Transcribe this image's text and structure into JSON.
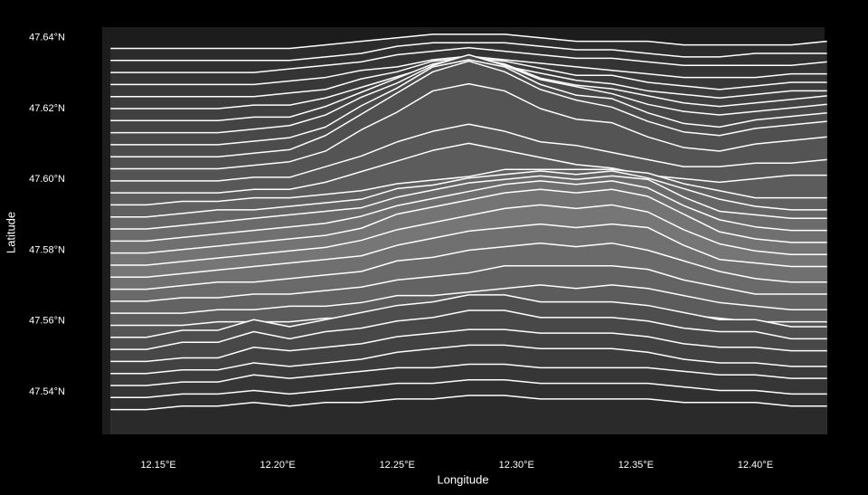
{
  "chart_data": {
    "type": "ridgeline",
    "xlabel": "Longitude",
    "ylabel": "Latitude",
    "color": "#ffffff",
    "xlim": [
      12.1265,
      12.429
    ],
    "ylim": [
      47.528,
      47.643
    ],
    "xticks": [
      {
        "value": 12.15,
        "label": "12.15°E"
      },
      {
        "value": 12.2,
        "label": "12.20°E"
      },
      {
        "value": 12.25,
        "label": "12.25°E"
      },
      {
        "value": 12.3,
        "label": "12.30°E"
      },
      {
        "value": 12.35,
        "label": "12.35°E"
      },
      {
        "value": 12.4,
        "label": "12.40°E"
      }
    ],
    "yticks": [
      {
        "value": 47.54,
        "label": "47.54°N"
      },
      {
        "value": 47.56,
        "label": "47.56°N"
      },
      {
        "value": 47.58,
        "label": "47.58°N"
      },
      {
        "value": 47.6,
        "label": "47.60°N"
      },
      {
        "value": 47.62,
        "label": "47.62°N"
      },
      {
        "value": 47.64,
        "label": "47.64°N"
      }
    ],
    "x": [
      12.13,
      12.145,
      12.16,
      12.175,
      12.19,
      12.205,
      12.22,
      12.235,
      12.25,
      12.265,
      12.28,
      12.295,
      12.31,
      12.325,
      12.34,
      12.355,
      12.37,
      12.385,
      12.4,
      12.415,
      12.43
    ],
    "series": [
      {
        "fill": "#2a2a2a",
        "values": [
          47.535,
          47.535,
          47.536,
          47.536,
          47.537,
          47.536,
          47.537,
          47.537,
          47.538,
          47.538,
          47.539,
          47.539,
          47.538,
          47.538,
          47.538,
          47.538,
          47.537,
          47.537,
          47.537,
          47.536,
          47.536
        ]
      },
      {
        "fill": "#303030",
        "values": [
          47.5384,
          47.5384,
          47.5394,
          47.5394,
          47.5404,
          47.5394,
          47.5404,
          47.5414,
          47.5424,
          47.5424,
          47.5434,
          47.5434,
          47.5424,
          47.5424,
          47.5424,
          47.5424,
          47.5414,
          47.5404,
          47.5404,
          47.5394,
          47.5394
        ]
      },
      {
        "fill": "#363636",
        "values": [
          47.5418,
          47.5418,
          47.5428,
          47.5428,
          47.5448,
          47.5438,
          47.5448,
          47.5458,
          47.5468,
          47.5468,
          47.5478,
          47.5478,
          47.5468,
          47.5468,
          47.5468,
          47.5468,
          47.5458,
          47.5448,
          47.5448,
          47.5438,
          47.5438
        ]
      },
      {
        "fill": "#3c3c3c",
        "values": [
          47.5452,
          47.5452,
          47.5462,
          47.5462,
          47.5482,
          47.5472,
          47.5482,
          47.5492,
          47.5512,
          47.5522,
          47.5532,
          47.5532,
          47.5522,
          47.5522,
          47.5522,
          47.5512,
          47.5492,
          47.5482,
          47.5482,
          47.5472,
          47.5472
        ]
      },
      {
        "fill": "#424242",
        "values": [
          47.5486,
          47.5486,
          47.5496,
          47.5496,
          47.5526,
          47.5516,
          47.5526,
          47.5536,
          47.5556,
          47.5566,
          47.5576,
          47.5576,
          47.5566,
          47.5566,
          47.5566,
          47.5556,
          47.5536,
          47.5526,
          47.5526,
          47.5516,
          47.5516
        ]
      },
      {
        "fill": "#484848",
        "values": [
          47.552,
          47.552,
          47.554,
          47.554,
          47.557,
          47.555,
          47.557,
          47.558,
          47.56,
          47.561,
          47.563,
          47.563,
          47.561,
          47.561,
          47.561,
          47.56,
          47.558,
          47.557,
          47.557,
          47.555,
          47.555
        ]
      },
      {
        "fill": "#4e4e4e",
        "values": [
          47.5554,
          47.5554,
          47.5574,
          47.5574,
          47.5604,
          47.5584,
          47.5604,
          47.5624,
          47.5644,
          47.5654,
          47.5674,
          47.5674,
          47.5654,
          47.5654,
          47.5654,
          47.5644,
          47.5624,
          47.5604,
          47.5604,
          47.5584,
          47.5584
        ]
      },
      {
        "fill": "#555555",
        "values": [
          47.5588,
          47.5588,
          47.5588,
          47.5598,
          47.5598,
          47.5598,
          47.5608,
          47.5608,
          47.5618,
          47.5628,
          47.5628,
          47.5638,
          47.5638,
          47.5638,
          47.5638,
          47.5638,
          47.5618,
          47.5608,
          47.5598,
          47.5598,
          47.5598
        ]
      },
      {
        "fill": "#5c5c5c",
        "values": [
          47.5622,
          47.5622,
          47.5622,
          47.5632,
          47.5632,
          47.5642,
          47.5642,
          47.5652,
          47.5672,
          47.5672,
          47.5682,
          47.5692,
          47.5702,
          47.5692,
          47.5702,
          47.5692,
          47.5672,
          47.5652,
          47.5642,
          47.5632,
          47.5632
        ]
      },
      {
        "fill": "#636363",
        "values": [
          47.5656,
          47.5656,
          47.5666,
          47.5666,
          47.5676,
          47.5676,
          47.5686,
          47.5696,
          47.5716,
          47.5726,
          47.5736,
          47.5756,
          47.5756,
          47.5756,
          47.5756,
          47.5746,
          47.5716,
          47.5696,
          47.5676,
          47.5676,
          47.5676
        ]
      },
      {
        "fill": "#6a6a6a",
        "values": [
          47.569,
          47.569,
          47.57,
          47.571,
          47.571,
          47.572,
          47.573,
          47.574,
          47.577,
          47.578,
          47.58,
          47.581,
          47.582,
          47.581,
          47.582,
          47.58,
          47.577,
          47.574,
          47.572,
          47.571,
          47.571
        ]
      },
      {
        "fill": "#707070",
        "values": [
          47.5724,
          47.5724,
          47.5734,
          47.5744,
          47.5754,
          47.5764,
          47.5774,
          47.5784,
          47.5814,
          47.5834,
          47.5854,
          47.5864,
          47.5874,
          47.5864,
          47.5874,
          47.5864,
          47.5814,
          47.5774,
          47.5764,
          47.5754,
          47.5754
        ]
      },
      {
        "fill": "#767676",
        "values": [
          47.5758,
          47.5758,
          47.5768,
          47.5778,
          47.5788,
          47.5798,
          47.5808,
          47.5828,
          47.5858,
          47.5878,
          47.5898,
          47.5918,
          47.5928,
          47.5918,
          47.5928,
          47.5908,
          47.5858,
          47.5818,
          47.5798,
          47.5788,
          47.5788
        ]
      },
      {
        "fill": "#747474",
        "values": [
          47.5792,
          47.5792,
          47.5802,
          47.5812,
          47.5822,
          47.5832,
          47.5842,
          47.5862,
          47.5902,
          47.5922,
          47.5942,
          47.5962,
          47.5972,
          47.5962,
          47.5972,
          47.5952,
          47.5902,
          47.5852,
          47.5832,
          47.5822,
          47.5822
        ]
      },
      {
        "fill": "#707070",
        "values": [
          47.5826,
          47.5826,
          47.5836,
          47.5846,
          47.5856,
          47.5866,
          47.5876,
          47.5896,
          47.5926,
          47.5946,
          47.5966,
          47.5986,
          47.5996,
          47.5986,
          47.5996,
          47.5976,
          47.5926,
          47.5886,
          47.5866,
          47.5856,
          47.5856
        ]
      },
      {
        "fill": "#6b6b6b",
        "values": [
          47.586,
          47.586,
          47.587,
          47.588,
          47.589,
          47.59,
          47.591,
          47.592,
          47.595,
          47.597,
          47.599,
          47.6,
          47.601,
          47.6,
          47.601,
          47.6,
          47.595,
          47.591,
          47.59,
          47.589,
          47.589
        ]
      },
      {
        "fill": "#666666",
        "values": [
          47.5894,
          47.5894,
          47.5904,
          47.5914,
          47.5914,
          47.5924,
          47.5934,
          47.5944,
          47.5974,
          47.5984,
          47.6004,
          47.6014,
          47.6024,
          47.6014,
          47.6024,
          47.6004,
          47.5974,
          47.5944,
          47.5924,
          47.5914,
          47.5914
        ]
      },
      {
        "fill": "#616161",
        "values": [
          47.5928,
          47.5928,
          47.5938,
          47.5938,
          47.5948,
          47.5948,
          47.5958,
          47.5968,
          47.5988,
          47.5998,
          47.6008,
          47.6028,
          47.6028,
          47.6028,
          47.6028,
          47.6018,
          47.5988,
          47.5968,
          47.5948,
          47.5948,
          47.5948
        ]
      },
      {
        "fill": "#5c5c5c",
        "values": [
          47.5962,
          47.5962,
          47.5962,
          47.5962,
          47.5972,
          47.5972,
          47.5992,
          47.6022,
          47.6052,
          47.6082,
          47.6102,
          47.6082,
          47.6062,
          47.6042,
          47.6032,
          47.6012,
          47.6002,
          47.5992,
          47.6002,
          47.6012,
          47.6012
        ]
      },
      {
        "fill": "#585858",
        "values": [
          47.5996,
          47.5996,
          47.5996,
          47.5996,
          47.6006,
          47.6006,
          47.6036,
          47.6066,
          47.6106,
          47.6136,
          47.6156,
          47.6136,
          47.6106,
          47.6096,
          47.6076,
          47.6056,
          47.6036,
          47.6036,
          47.6046,
          47.6046,
          47.6056
        ]
      },
      {
        "fill": "#545454",
        "values": [
          47.603,
          47.603,
          47.603,
          47.603,
          47.604,
          47.605,
          47.608,
          47.614,
          47.619,
          47.625,
          47.627,
          47.625,
          47.62,
          47.617,
          47.616,
          47.612,
          47.609,
          47.608,
          47.61,
          47.611,
          47.612
        ]
      },
      {
        "fill": "#505050",
        "values": [
          47.6064,
          47.6064,
          47.6064,
          47.6064,
          47.6074,
          47.6084,
          47.6124,
          47.6184,
          47.6244,
          47.6304,
          47.6334,
          47.6304,
          47.6254,
          47.6224,
          47.6204,
          47.6164,
          47.6134,
          47.6124,
          47.6144,
          47.6154,
          47.6164
        ]
      },
      {
        "fill": "#4c4c4c",
        "values": [
          47.6098,
          47.6098,
          47.6098,
          47.6098,
          47.6108,
          47.6118,
          47.6148,
          47.6208,
          47.6258,
          47.6318,
          47.6338,
          47.6318,
          47.6268,
          47.6238,
          47.6228,
          47.6188,
          47.6158,
          47.6148,
          47.6168,
          47.6178,
          47.6188
        ]
      },
      {
        "fill": "#484848",
        "values": [
          47.6132,
          47.6132,
          47.6132,
          47.6132,
          47.6142,
          47.6152,
          47.6182,
          47.6232,
          47.6272,
          47.6322,
          47.6352,
          47.6322,
          47.6282,
          47.6262,
          47.6242,
          47.6212,
          47.6192,
          47.6182,
          47.6192,
          47.6202,
          47.6212
        ]
      },
      {
        "fill": "#444444",
        "values": [
          47.6166,
          47.6166,
          47.6166,
          47.6166,
          47.6176,
          47.6176,
          47.6206,
          47.6246,
          47.6286,
          47.6326,
          47.6346,
          47.6326,
          47.6286,
          47.6266,
          47.6256,
          47.6236,
          47.6216,
          47.6206,
          47.6216,
          47.6226,
          47.6236
        ]
      },
      {
        "fill": "#404040",
        "values": [
          47.62,
          47.62,
          47.62,
          47.62,
          47.621,
          47.621,
          47.623,
          47.626,
          47.629,
          47.632,
          47.634,
          47.632,
          47.63,
          47.628,
          47.627,
          47.625,
          47.624,
          47.623,
          47.624,
          47.625,
          47.625
        ]
      },
      {
        "fill": "#3c3c3c",
        "values": [
          47.6234,
          47.6234,
          47.6234,
          47.6234,
          47.6234,
          47.6244,
          47.6254,
          47.6284,
          47.6304,
          47.6334,
          47.6344,
          47.6334,
          47.6314,
          47.6294,
          47.6294,
          47.6274,
          47.6264,
          47.6254,
          47.6264,
          47.6274,
          47.6274
        ]
      },
      {
        "fill": "#383838",
        "values": [
          47.6268,
          47.6268,
          47.6268,
          47.6268,
          47.6268,
          47.6278,
          47.6288,
          47.6308,
          47.6318,
          47.6338,
          47.6348,
          47.6338,
          47.6328,
          47.6318,
          47.6308,
          47.6298,
          47.6288,
          47.6288,
          47.6288,
          47.6298,
          47.6298
        ]
      },
      {
        "fill": "#343434",
        "values": [
          47.6302,
          47.6302,
          47.6302,
          47.6302,
          47.6302,
          47.6312,
          47.6322,
          47.6332,
          47.6352,
          47.6362,
          47.6372,
          47.6362,
          47.6352,
          47.6342,
          47.6342,
          47.6332,
          47.6322,
          47.6322,
          47.6322,
          47.6322,
          47.6332
        ]
      },
      {
        "fill": "#303030",
        "values": [
          47.6336,
          47.6336,
          47.6336,
          47.6336,
          47.6336,
          47.6336,
          47.6346,
          47.6356,
          47.6376,
          47.6386,
          47.6386,
          47.6386,
          47.6376,
          47.6366,
          47.6366,
          47.6356,
          47.6346,
          47.6346,
          47.6356,
          47.6356,
          47.6356
        ]
      },
      {
        "fill": "#2c2c2c",
        "values": [
          47.637,
          47.637,
          47.637,
          47.637,
          47.637,
          47.637,
          47.638,
          47.639,
          47.64,
          47.641,
          47.641,
          47.641,
          47.64,
          47.639,
          47.639,
          47.639,
          47.638,
          47.638,
          47.638,
          47.638,
          47.639
        ]
      }
    ]
  }
}
